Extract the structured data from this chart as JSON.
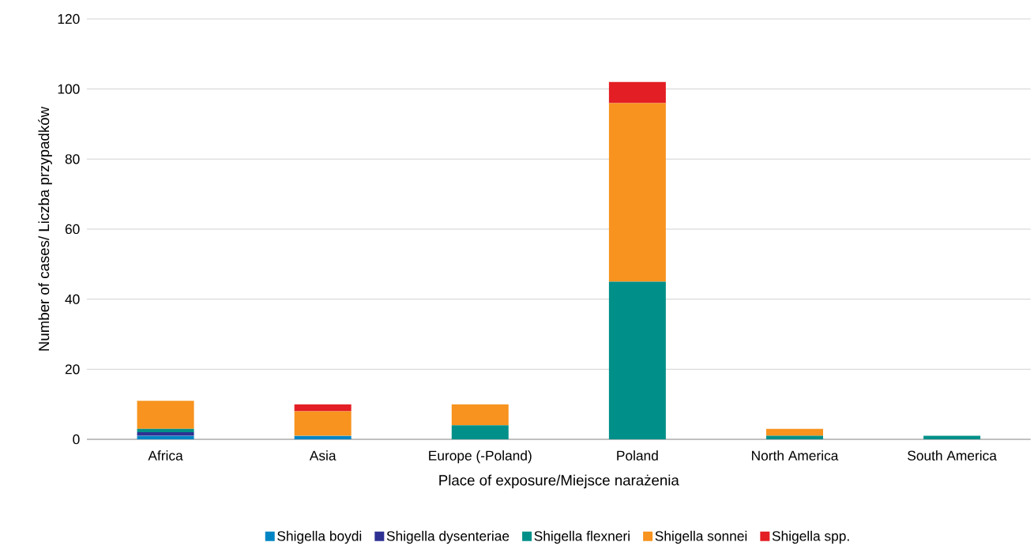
{
  "chart_data": {
    "type": "bar",
    "stacked": true,
    "xlabel": "Place of exposure/Miejsce narażenia",
    "ylabel": "Number of cases/ Liczba przypadków",
    "categories": [
      "Africa",
      "Asia",
      "Europe (-Poland)",
      "Poland",
      "North America",
      "South America"
    ],
    "series": [
      {
        "name": "Shigella boydi",
        "color": "#0085c4",
        "values": [
          1,
          1,
          0,
          0,
          0,
          0
        ]
      },
      {
        "name": "Shigella dysenteriae",
        "color": "#2e3192",
        "values": [
          1,
          0,
          0,
          0,
          0,
          0
        ]
      },
      {
        "name": "Shigella flexneri",
        "color": "#009089",
        "values": [
          1,
          0,
          4,
          45,
          1,
          1
        ]
      },
      {
        "name": "Shigella sonnei",
        "color": "#f7931e",
        "values": [
          8,
          7,
          6,
          51,
          2,
          0
        ]
      },
      {
        "name": "Shigella spp.",
        "color": "#e31e24",
        "values": [
          0,
          2,
          0,
          6,
          0,
          0
        ]
      }
    ],
    "ylim": [
      0,
      120
    ],
    "yticks": [
      0,
      20,
      40,
      60,
      80,
      100,
      120
    ],
    "grid": "y",
    "legend": "bottom"
  }
}
